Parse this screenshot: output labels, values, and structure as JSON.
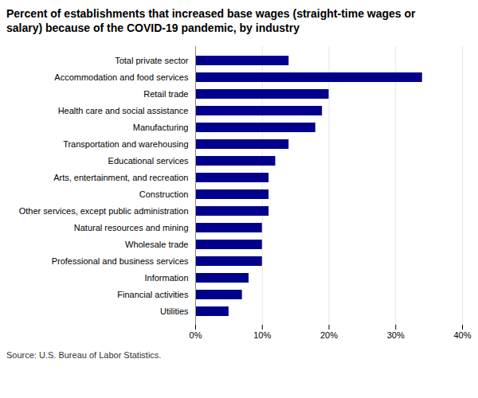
{
  "chart_data": {
    "type": "bar",
    "orientation": "horizontal",
    "title": "Percent of establishments that increased base wages (straight-time wages or\nsalary) because of the COVID-19 pandemic, by industry",
    "source": "Source: U.S. Bureau of Labor Statistics.",
    "categories": [
      "Utilities",
      "Financial activities",
      "Information",
      "Professional and business services",
      "Wholesale trade",
      "Natural resources and mining",
      "Other services, except public administration",
      "Construction",
      "Arts, entertainment, and recreation",
      "Educational services",
      "Transportation and warehousing",
      "Manufacturing",
      "Health care and social assistance",
      "Retail trade",
      "Accommodation and food services",
      "Total private sector"
    ],
    "values": [
      5,
      7,
      8,
      10,
      10,
      10,
      11,
      11,
      11,
      12,
      14,
      18,
      19,
      20,
      34,
      14
    ],
    "color": "#00008B",
    "xlim": [
      0,
      40
    ],
    "xticks": [
      {
        "value": 0,
        "label": "0%"
      },
      {
        "value": 10,
        "label": "10%"
      },
      {
        "value": 20,
        "label": "20%"
      },
      {
        "value": 30,
        "label": "30%"
      },
      {
        "value": 40,
        "label": "40%"
      }
    ],
    "grid": true
  }
}
